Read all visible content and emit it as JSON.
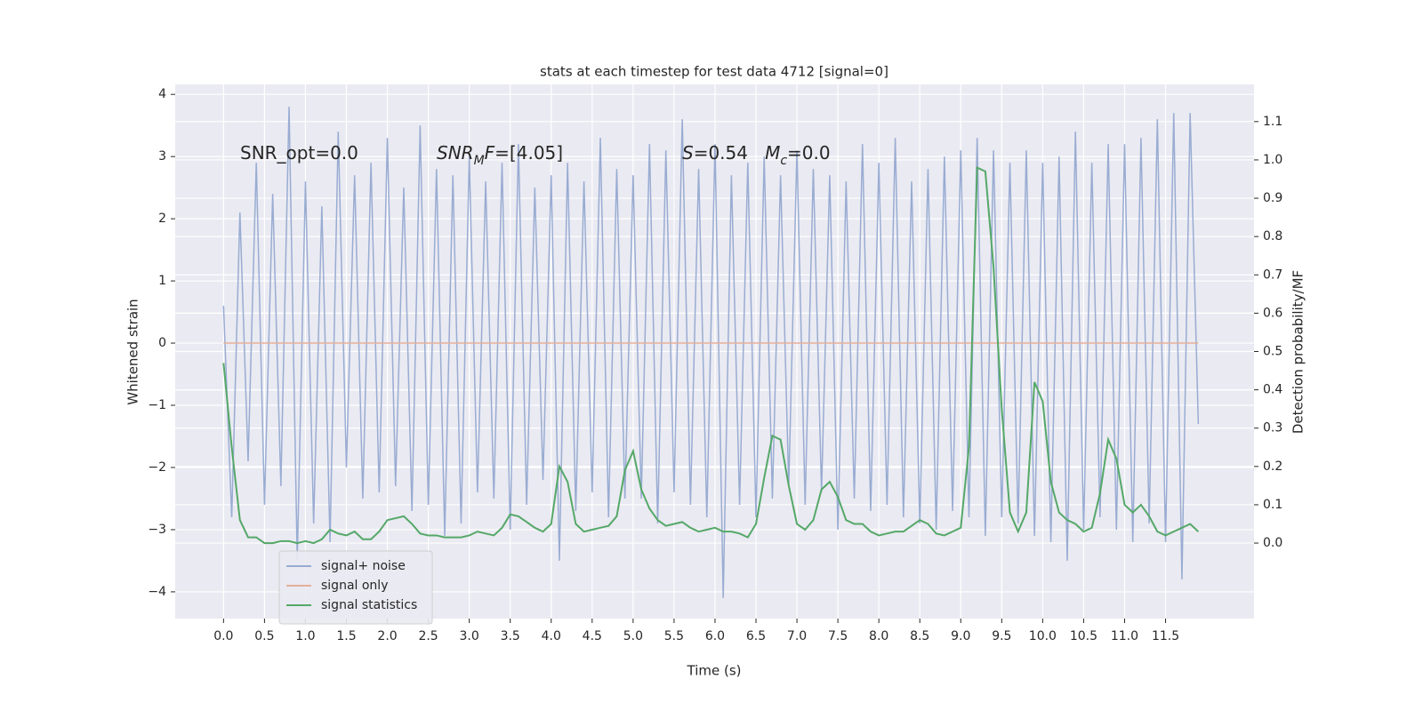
{
  "chart_data": {
    "type": "line",
    "title": "stats at each timestep for test data 4712 [signal=0]",
    "xlabel": "Time (s)",
    "ylabel": "Whitened strain",
    "y2label": "Detection probability/MF",
    "annotations": [
      [
        {
          "text": "SNR_opt=0.0"
        }
      ],
      [
        {
          "text": "SNR",
          "italic": true
        },
        {
          "text": "M",
          "italic": true,
          "sub": true
        },
        {
          "text": "F",
          "italic": true
        },
        {
          "text": "=[4.05]"
        }
      ],
      [
        {
          "text": "S",
          "italic": true
        },
        {
          "text": "=0.54   "
        },
        {
          "text": "M",
          "italic": true
        },
        {
          "text": "c",
          "italic": true,
          "sub": true
        },
        {
          "text": "=0.0"
        }
      ]
    ],
    "x": [
      0,
      0.1,
      0.2,
      0.3,
      0.4,
      0.5,
      0.6,
      0.7,
      0.8,
      0.9,
      1,
      1.1,
      1.2,
      1.3,
      1.4,
      1.5,
      1.6,
      1.7,
      1.8,
      1.9,
      2,
      2.1,
      2.2,
      2.3,
      2.4,
      2.5,
      2.6,
      2.7,
      2.8,
      2.9,
      3,
      3.1,
      3.2,
      3.3,
      3.4,
      3.5,
      3.6,
      3.7,
      3.8,
      3.9,
      4,
      4.1,
      4.2,
      4.3,
      4.4,
      4.5,
      4.6,
      4.7,
      4.8,
      4.9,
      5,
      5.1,
      5.2,
      5.3,
      5.4,
      5.5,
      5.6,
      5.7,
      5.8,
      5.9,
      6,
      6.1,
      6.2,
      6.3,
      6.4,
      6.5,
      6.6,
      6.7,
      6.8,
      6.9,
      7,
      7.1,
      7.2,
      7.3,
      7.4,
      7.5,
      7.6,
      7.7,
      7.8,
      7.9,
      8,
      8.1,
      8.2,
      8.3,
      8.4,
      8.5,
      8.6,
      8.7,
      8.8,
      8.9,
      9,
      9.1,
      9.2,
      9.3,
      9.4,
      9.5,
      9.6,
      9.7,
      9.8,
      9.9,
      10,
      10.1,
      10.2,
      10.3,
      10.4,
      10.5,
      10.6,
      10.7,
      10.8,
      10.9,
      11,
      11.1,
      11.2,
      11.3,
      11.4,
      11.5,
      11.6,
      11.7,
      11.8,
      11.9
    ],
    "series": [
      {
        "name": "signal+ noise",
        "color": "#99acd2",
        "values": [
          0.6,
          -2.8,
          2.1,
          -1.9,
          2.9,
          -2.6,
          2.4,
          -2.3,
          3.8,
          -3.5,
          2.6,
          -2.9,
          2.2,
          -3.2,
          3.4,
          -2.0,
          2.7,
          -2.5,
          2.9,
          -2.4,
          3.3,
          -2.3,
          2.5,
          -2.7,
          3.5,
          -2.6,
          2.8,
          -3.1,
          2.7,
          -2.9,
          3.0,
          -2.4,
          2.6,
          -2.5,
          2.9,
          -3.0,
          3.2,
          -2.6,
          2.5,
          -2.2,
          2.7,
          -3.5,
          2.9,
          -2.7,
          2.6,
          -2.4,
          3.3,
          -2.8,
          2.8,
          -2.5,
          2.7,
          -2.5,
          3.2,
          -2.9,
          3.1,
          -2.4,
          3.6,
          -2.6,
          2.8,
          -2.8,
          3.2,
          -4.1,
          2.7,
          -2.6,
          2.9,
          -2.8,
          3.0,
          -2.5,
          2.7,
          -2.3,
          3.1,
          -2.6,
          2.8,
          -2.4,
          2.7,
          -3.0,
          2.6,
          -2.5,
          3.2,
          -2.7,
          2.9,
          -2.6,
          3.3,
          -2.8,
          2.6,
          -2.9,
          2.8,
          -3.0,
          3.0,
          -2.7,
          3.1,
          -2.8,
          3.3,
          -3.1,
          3.1,
          -2.8,
          2.9,
          -2.9,
          3.1,
          -3.1,
          2.9,
          -3.2,
          3.0,
          -3.5,
          3.4,
          -3.0,
          2.9,
          -2.8,
          3.2,
          -3.0,
          3.2,
          -3.2,
          3.3,
          -2.9,
          3.6,
          -3.2,
          3.7,
          -3.8,
          3.7,
          -1.3
        ]
      },
      {
        "name": "signal only",
        "color": "#e5b09a",
        "values": [
          0,
          0,
          0,
          0,
          0,
          0,
          0,
          0,
          0,
          0,
          0,
          0,
          0,
          0,
          0,
          0,
          0,
          0,
          0,
          0,
          0,
          0,
          0,
          0,
          0,
          0,
          0,
          0,
          0,
          0,
          0,
          0,
          0,
          0,
          0,
          0,
          0,
          0,
          0,
          0,
          0,
          0,
          0,
          0,
          0,
          0,
          0,
          0,
          0,
          0,
          0,
          0,
          0,
          0,
          0,
          0,
          0,
          0,
          0,
          0,
          0,
          0,
          0,
          0,
          0,
          0,
          0,
          0,
          0,
          0,
          0,
          0,
          0,
          0,
          0,
          0,
          0,
          0,
          0,
          0,
          0,
          0,
          0,
          0,
          0,
          0,
          0,
          0,
          0,
          0,
          0,
          0,
          0,
          0,
          0,
          0,
          0,
          0,
          0,
          0,
          0,
          0,
          0,
          0,
          0,
          0,
          0,
          0,
          0,
          0,
          0,
          0,
          0,
          0,
          0,
          0,
          0,
          0,
          0,
          0
        ]
      },
      {
        "name": "signal statistics",
        "color": "#55a868",
        "axis": "y2",
        "values": [
          0.47,
          0.25,
          0.06,
          0.015,
          0.015,
          0,
          0,
          0.005,
          0.005,
          0,
          0.005,
          0,
          0.01,
          0.035,
          0.025,
          0.02,
          0.03,
          0.01,
          0.01,
          0.03,
          0.06,
          0.065,
          0.07,
          0.05,
          0.025,
          0.02,
          0.02,
          0.015,
          0.015,
          0.015,
          0.02,
          0.03,
          0.025,
          0.02,
          0.04,
          0.075,
          0.07,
          0.055,
          0.04,
          0.03,
          0.05,
          0.2,
          0.16,
          0.05,
          0.03,
          0.035,
          0.04,
          0.045,
          0.07,
          0.19,
          0.24,
          0.14,
          0.09,
          0.06,
          0.045,
          0.05,
          0.055,
          0.04,
          0.03,
          0.035,
          0.04,
          0.03,
          0.03,
          0.025,
          0.015,
          0.05,
          0.17,
          0.28,
          0.27,
          0.15,
          0.05,
          0.035,
          0.06,
          0.14,
          0.16,
          0.12,
          0.06,
          0.05,
          0.05,
          0.03,
          0.02,
          0.025,
          0.03,
          0.03,
          0.045,
          0.06,
          0.05,
          0.025,
          0.02,
          0.03,
          0.04,
          0.25,
          0.98,
          0.97,
          0.72,
          0.35,
          0.08,
          0.03,
          0.08,
          0.42,
          0.37,
          0.16,
          0.08,
          0.06,
          0.05,
          0.03,
          0.04,
          0.13,
          0.27,
          0.22,
          0.1,
          0.08,
          0.1,
          0.07,
          0.03,
          0.02,
          0.03,
          0.04,
          0.05,
          0.03
        ]
      }
    ],
    "xlim": [
      -0.59,
      12.58
    ],
    "xticks": [
      {
        "value": 0,
        "label": "0.0"
      },
      0.5,
      {
        "value": 1,
        "label": "1.0"
      },
      1.5,
      {
        "value": 2,
        "label": "2.0"
      },
      2.5,
      {
        "value": 3,
        "label": "3.0"
      },
      3.5,
      {
        "value": 4,
        "label": "4.0"
      },
      4.5,
      {
        "value": 5,
        "label": "5.0"
      },
      5.5,
      {
        "value": 6,
        "label": "6.0"
      },
      6.5,
      {
        "value": 7,
        "label": "7.0"
      },
      7.5,
      {
        "value": 8,
        "label": "8.0"
      },
      8.5,
      {
        "value": 9,
        "label": "9.0"
      },
      9.5,
      {
        "value": 10,
        "label": "10.0"
      },
      10.5,
      {
        "value": 11,
        "label": "11.0"
      },
      11.5
    ],
    "ylim": [
      -4.43,
      4.16
    ],
    "yticks": [
      {
        "value": -4,
        "label": "−4"
      },
      {
        "value": -3,
        "label": "−3"
      },
      {
        "value": -2,
        "label": "−2"
      },
      {
        "value": -1,
        "label": "−1"
      },
      0,
      1,
      2,
      3,
      4
    ],
    "y2lim": [
      -0.197,
      1.197
    ],
    "y2ticks": [
      {
        "value": 0,
        "label": "0.0"
      },
      0.1,
      0.2,
      0.3,
      0.4,
      0.5,
      0.6,
      0.7,
      0.8,
      0.9,
      {
        "value": 1,
        "label": "1.0"
      },
      1.1
    ],
    "grid": true,
    "legend": "lower left"
  }
}
